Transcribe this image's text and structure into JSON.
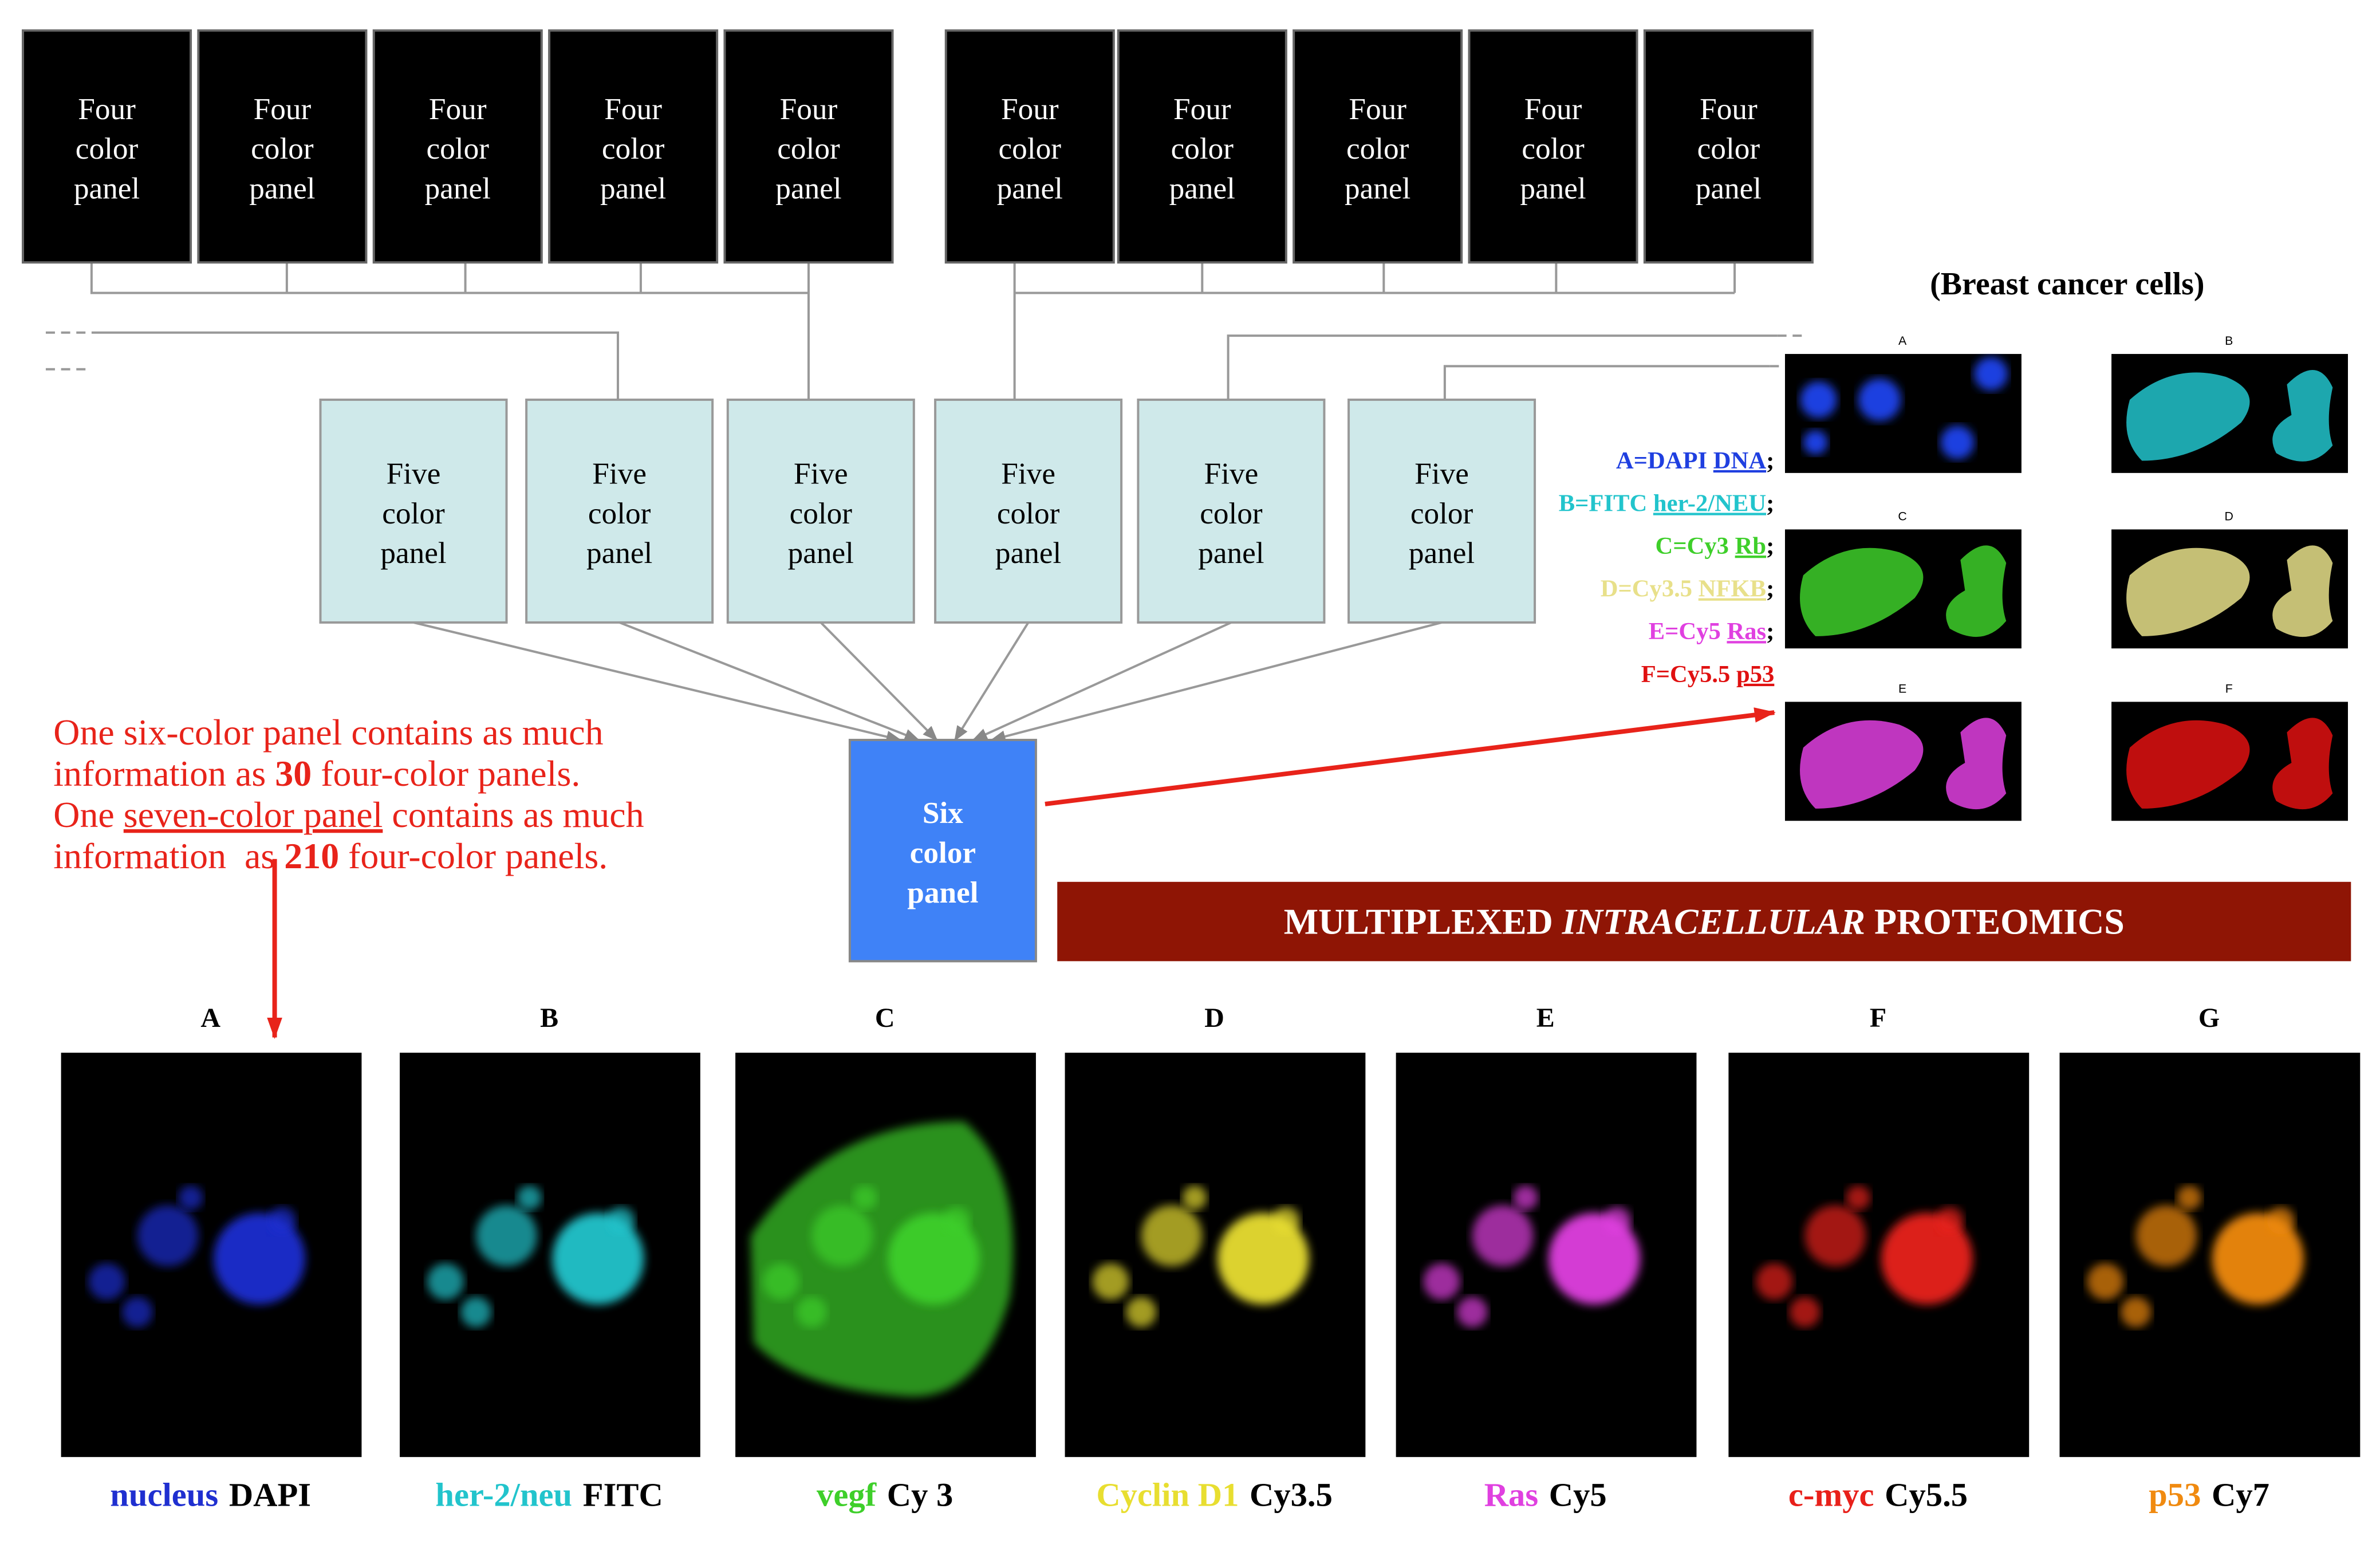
{
  "four_color_panels": [
    [
      "Four",
      "color",
      "panel"
    ],
    [
      "Four",
      "color",
      "panel"
    ],
    [
      "Four",
      "color",
      "panel"
    ],
    [
      "Four",
      "color",
      "panel"
    ],
    [
      "Four",
      "color",
      "panel"
    ],
    [
      "Four",
      "color",
      "panel"
    ],
    [
      "Four",
      "color",
      "panel"
    ],
    [
      "Four",
      "color",
      "panel"
    ],
    [
      "Four",
      "color",
      "panel"
    ],
    [
      "Four",
      "color",
      "panel"
    ]
  ],
  "five_color_panels": [
    [
      "Five",
      "color",
      "panel"
    ],
    [
      "Five",
      "color",
      "panel"
    ],
    [
      "Five",
      "color",
      "panel"
    ],
    [
      "Five",
      "color",
      "panel"
    ],
    [
      "Five",
      "color",
      "panel"
    ],
    [
      "Five",
      "color",
      "panel"
    ]
  ],
  "six_color_panel": [
    "Six",
    "color",
    "panel"
  ],
  "breast_title": "(Breast cancer cells)",
  "legend": [
    {
      "label": "A=DAPI ",
      "term": "DNA",
      "end": ";",
      "color": "#1f3fe0"
    },
    {
      "label": "B=FITC ",
      "term": "her-2/NEU",
      "end": ";",
      "color": "#22c4cc"
    },
    {
      "label": "C=Cy3 ",
      "term": "Rb",
      "end": ";",
      "color": "#3ecf2a"
    },
    {
      "label": "D=Cy3.5 ",
      "term": "NFKB",
      "end": ";",
      "color": "#e8e08a"
    },
    {
      "label": "E=Cy5 ",
      "term": "Ras",
      "end": ";",
      "color": "#e040e0"
    },
    {
      "label": "F=Cy5.5 ",
      "term": "p53",
      "end": "",
      "color": "#e01010"
    }
  ],
  "breast_images": [
    "A",
    "B",
    "C",
    "D",
    "E",
    "F"
  ],
  "annotation": [
    [
      {
        "text": "One six-color panel contains as much"
      }
    ],
    [
      {
        "text": "information as "
      },
      {
        "text": "30",
        "bold": true
      },
      {
        "text": " four-color panels."
      }
    ],
    [
      {
        "text": "One "
      },
      {
        "text": "seven-color panel",
        "underline": true
      },
      {
        "text": " contains as much"
      }
    ],
    [
      {
        "text": "information  as "
      },
      {
        "text": "210",
        "bold": true
      },
      {
        "text": " four-color panels."
      }
    ]
  ],
  "banner": [
    {
      "text": "MULTIPLEXED "
    },
    {
      "text": "INTRACELLULAR",
      "italic": true
    },
    {
      "text": " PROTEOMICS"
    }
  ],
  "panels": [
    {
      "letter": "A",
      "marker": "nucleus",
      "marker_color": "#1f2fd0",
      "dye": "DAPI"
    },
    {
      "letter": "B",
      "marker": "her-2/neu",
      "marker_color": "#22c4cc",
      "dye": "FITC"
    },
    {
      "letter": "C",
      "marker": "vegf",
      "marker_color": "#3ecf2a",
      "dye": "Cy 3"
    },
    {
      "letter": "D",
      "marker": "Cyclin D1",
      "marker_color": "#e8de30",
      "dye": "Cy3.5"
    },
    {
      "letter": "E",
      "marker": "Ras",
      "marker_color": "#e040e0",
      "dye": "Cy5"
    },
    {
      "letter": "F",
      "marker": "c-myc",
      "marker_color": "#e8201a",
      "dye": "Cy5.5"
    },
    {
      "letter": "G",
      "marker": "p53",
      "marker_color": "#f08a10",
      "dye": "Cy7"
    }
  ]
}
